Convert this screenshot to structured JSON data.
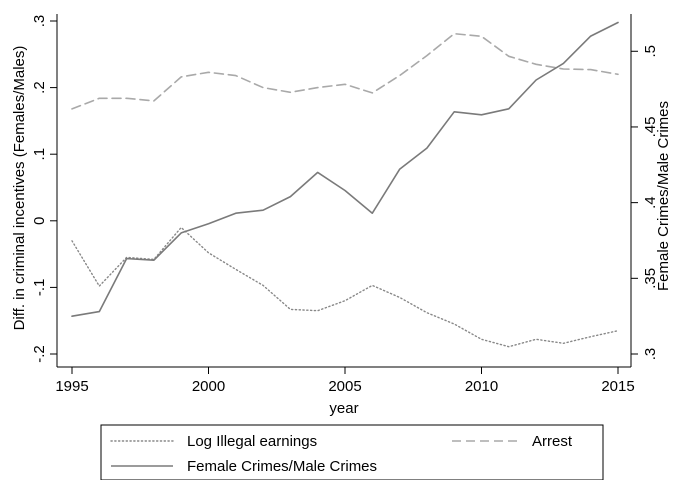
{
  "chart_data": {
    "type": "line",
    "xlabel": "year",
    "ylabel_left": "Diff. in criminal incentives (Females/Males)",
    "ylabel_right": "Female Crimes/Male Crimes",
    "x_ticks": [
      "1995",
      "2000",
      "2005",
      "2010",
      "2015"
    ],
    "y_left_ticks": [
      "-.2",
      "-.1",
      "0",
      ".1",
      ".2",
      ".3"
    ],
    "y_right_ticks": [
      ".3",
      ".35",
      ".4",
      ".45",
      ".5"
    ],
    "xlim": [
      1995,
      2015
    ],
    "ylim_left": [
      -0.2,
      0.3
    ],
    "ylim_right": [
      0.3,
      0.52
    ],
    "x": [
      1995,
      1996,
      1997,
      1998,
      1999,
      2000,
      2001,
      2002,
      2003,
      2004,
      2005,
      2006,
      2007,
      2008,
      2009,
      2010,
      2011,
      2012,
      2013,
      2014,
      2015
    ],
    "series": [
      {
        "name": "Log Illegal earnings",
        "axis": "left",
        "style": "dotted",
        "color": "#888888",
        "values": [
          -0.03,
          -0.098,
          -0.055,
          -0.058,
          -0.01,
          -0.048,
          -0.073,
          -0.097,
          -0.133,
          -0.135,
          -0.12,
          -0.097,
          -0.115,
          -0.138,
          -0.155,
          -0.178,
          -0.189,
          -0.178,
          -0.184,
          -0.174,
          -0.165
        ]
      },
      {
        "name": "Arrest",
        "axis": "left",
        "style": "dashed",
        "color": "#a9a9a9",
        "values": [
          0.168,
          0.184,
          0.184,
          0.18,
          0.216,
          0.223,
          0.218,
          0.2,
          0.193,
          0.2,
          0.205,
          0.192,
          0.218,
          0.248,
          0.281,
          0.277,
          0.247,
          0.235,
          0.228,
          0.227,
          0.22
        ]
      },
      {
        "name": "Female Crimes/Male Crimes",
        "axis": "right",
        "style": "solid",
        "color": "#7a7a7a",
        "values": [
          0.325,
          0.328,
          0.363,
          0.362,
          0.38,
          0.386,
          0.393,
          0.395,
          0.404,
          0.42,
          0.408,
          0.393,
          0.422,
          0.436,
          0.46,
          0.458,
          0.462,
          0.481,
          0.492,
          0.51,
          0.519
        ]
      }
    ],
    "legend": {
      "placement": "bottom",
      "items": [
        "Log Illegal earnings",
        "Arrest",
        "Female Crimes/Male Crimes"
      ]
    },
    "grid": false
  }
}
